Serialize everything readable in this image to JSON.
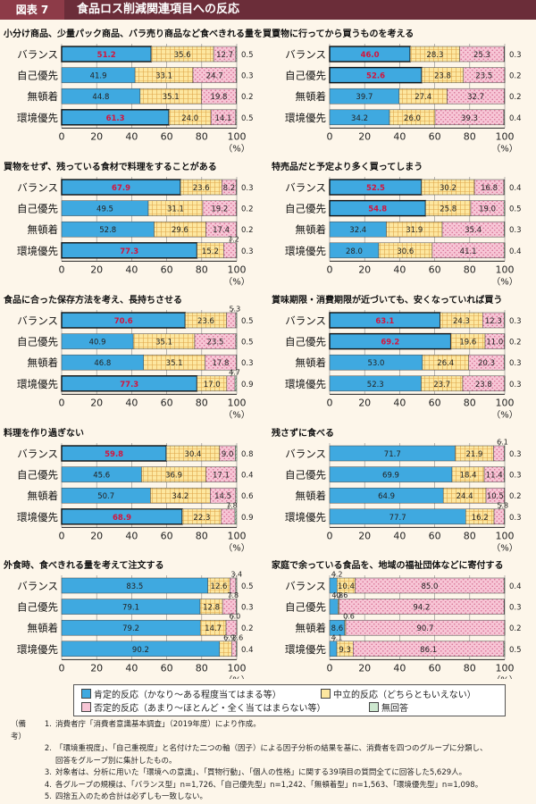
{
  "header": {
    "figure_label": "図表 7",
    "title": "食品ロス削減関連項目への反応"
  },
  "colors": {
    "positive": "#3fa9e0",
    "neutral": "#fde7a0",
    "negative": "#f7c6d6",
    "no_answer": "#cde8cf",
    "highlight": "#d5143c"
  },
  "chart_data": [
    {
      "type": "bar",
      "stacked": true,
      "orientation": "horizontal",
      "title": "小分け商品、少量パック商品、バラ売り商品など食べきれる量を買う",
      "categories": [
        "バランス",
        "自己優先",
        "無頓着",
        "環境優先"
      ],
      "highlight": [
        0,
        3
      ],
      "series": [
        {
          "values": [
            51.2,
            41.9,
            44.8,
            61.3
          ]
        },
        {
          "values": [
            35.6,
            33.1,
            35.1,
            24.0
          ]
        },
        {
          "values": [
            12.7,
            24.7,
            19.8,
            14.1
          ]
        },
        {
          "values": [
            0.5,
            0.3,
            0.2,
            0.5
          ]
        }
      ],
      "xlim": [
        0,
        100
      ],
      "ticks": [
        "0",
        "20",
        "40",
        "60",
        "80",
        "100"
      ],
      "unit": "（%）"
    },
    {
      "type": "bar",
      "stacked": true,
      "orientation": "horizontal",
      "title": "買物に行ってから買うものを考える",
      "categories": [
        "バランス",
        "自己優先",
        "無頓着",
        "環境優先"
      ],
      "highlight": [
        0,
        1
      ],
      "series": [
        {
          "values": [
            46.0,
            52.6,
            39.7,
            34.2
          ]
        },
        {
          "values": [
            28.3,
            23.8,
            27.4,
            26.0
          ]
        },
        {
          "values": [
            25.3,
            23.5,
            32.7,
            39.3
          ]
        },
        {
          "values": [
            0.3,
            0.2,
            0.2,
            0.4
          ]
        }
      ],
      "xlim": [
        0,
        100
      ],
      "ticks": [
        "0",
        "20",
        "40",
        "60",
        "80",
        "100"
      ],
      "unit": "（%）"
    },
    {
      "type": "bar",
      "stacked": true,
      "orientation": "horizontal",
      "title": "買物をせず、残っている食材で料理をすることがある",
      "categories": [
        "バランス",
        "自己優先",
        "無頓着",
        "環境優先"
      ],
      "highlight": [
        0,
        3
      ],
      "series": [
        {
          "values": [
            67.9,
            49.5,
            52.8,
            77.3
          ]
        },
        {
          "values": [
            23.6,
            31.1,
            29.6,
            15.2
          ]
        },
        {
          "values": [
            8.2,
            19.2,
            17.4,
            7.2
          ]
        },
        {
          "values": [
            0.3,
            0.2,
            0.2,
            0.3
          ]
        }
      ],
      "xlim": [
        0,
        100
      ],
      "ticks": [
        "0",
        "20",
        "40",
        "60",
        "80",
        "100"
      ],
      "unit": "（%）"
    },
    {
      "type": "bar",
      "stacked": true,
      "orientation": "horizontal",
      "title": "特売品だと予定より多く買ってしまう",
      "categories": [
        "バランス",
        "自己優先",
        "無頓着",
        "環境優先"
      ],
      "highlight": [
        0,
        1
      ],
      "series": [
        {
          "values": [
            52.5,
            54.8,
            32.4,
            28.0
          ]
        },
        {
          "values": [
            30.2,
            25.8,
            31.9,
            30.6
          ]
        },
        {
          "values": [
            16.8,
            19.0,
            35.4,
            41.1
          ]
        },
        {
          "values": [
            0.4,
            0.5,
            0.3,
            0.4
          ]
        }
      ],
      "xlim": [
        0,
        100
      ],
      "ticks": [
        "0",
        "20",
        "40",
        "60",
        "80",
        "100"
      ],
      "unit": "（%）"
    },
    {
      "type": "bar",
      "stacked": true,
      "orientation": "horizontal",
      "title": "食品に合った保存方法を考え、長持ちさせる",
      "categories": [
        "バランス",
        "自己優先",
        "無頓着",
        "環境優先"
      ],
      "highlight": [
        0,
        3
      ],
      "series": [
        {
          "values": [
            70.6,
            40.9,
            46.8,
            77.3
          ]
        },
        {
          "values": [
            23.6,
            35.1,
            35.1,
            17.0
          ]
        },
        {
          "values": [
            5.3,
            23.5,
            17.8,
            4.7
          ]
        },
        {
          "values": [
            0.5,
            0.5,
            0.3,
            0.9
          ]
        }
      ],
      "xlim": [
        0,
        100
      ],
      "ticks": [
        "0",
        "20",
        "40",
        "60",
        "80",
        "100"
      ],
      "unit": "（%）"
    },
    {
      "type": "bar",
      "stacked": true,
      "orientation": "horizontal",
      "title": "賞味期限・消費期限が近づいても、安くなっていれば買う",
      "categories": [
        "バランス",
        "自己優先",
        "無頓着",
        "環境優先"
      ],
      "highlight": [
        0,
        1
      ],
      "series": [
        {
          "values": [
            63.1,
            69.2,
            53.0,
            52.3
          ]
        },
        {
          "values": [
            24.3,
            19.6,
            26.4,
            23.7
          ]
        },
        {
          "values": [
            12.3,
            11.0,
            20.3,
            23.8
          ]
        },
        {
          "values": [
            0.3,
            0.2,
            0.3,
            0.3
          ]
        }
      ],
      "xlim": [
        0,
        100
      ],
      "ticks": [
        "0",
        "20",
        "40",
        "60",
        "80",
        "100"
      ],
      "unit": "（%）"
    },
    {
      "type": "bar",
      "stacked": true,
      "orientation": "horizontal",
      "title": "料理を作り過ぎない",
      "categories": [
        "バランス",
        "自己優先",
        "無頓着",
        "環境優先"
      ],
      "highlight": [
        0,
        3
      ],
      "series": [
        {
          "values": [
            59.8,
            45.6,
            50.7,
            68.9
          ]
        },
        {
          "values": [
            30.4,
            36.9,
            34.2,
            22.3
          ]
        },
        {
          "values": [
            9.0,
            17.1,
            14.5,
            7.8
          ]
        },
        {
          "values": [
            0.8,
            0.4,
            0.6,
            0.9
          ]
        }
      ],
      "xlim": [
        0,
        100
      ],
      "ticks": [
        "0",
        "20",
        "40",
        "60",
        "80",
        "100"
      ],
      "unit": "（%）"
    },
    {
      "type": "bar",
      "stacked": true,
      "orientation": "horizontal",
      "title": "残さずに食べる",
      "categories": [
        "バランス",
        "自己優先",
        "無頓着",
        "環境優先"
      ],
      "highlight": [],
      "series": [
        {
          "values": [
            71.7,
            69.9,
            64.9,
            77.7
          ]
        },
        {
          "values": [
            21.9,
            18.4,
            24.4,
            16.2
          ]
        },
        {
          "values": [
            6.1,
            11.4,
            10.5,
            5.8
          ]
        },
        {
          "values": [
            0.3,
            0.3,
            0.2,
            0.3
          ]
        }
      ],
      "xlim": [
        0,
        100
      ],
      "ticks": [
        "0",
        "20",
        "40",
        "60",
        "80",
        "100"
      ],
      "unit": "（%）"
    },
    {
      "type": "bar",
      "stacked": true,
      "orientation": "horizontal",
      "title": "外食時、食べきれる量を考えて注文する",
      "categories": [
        "バランス",
        "自己優先",
        "無頓着",
        "環境優先"
      ],
      "highlight": [],
      "series": [
        {
          "values": [
            83.5,
            79.1,
            79.2,
            90.2
          ]
        },
        {
          "values": [
            12.6,
            12.8,
            14.7,
            6.9
          ]
        },
        {
          "values": [
            3.4,
            7.8,
            6.0,
            2.6
          ]
        },
        {
          "values": [
            0.5,
            0.3,
            0.2,
            0.4
          ]
        }
      ],
      "xlim": [
        0,
        100
      ],
      "ticks": [
        "0",
        "20",
        "40",
        "60",
        "80",
        "100"
      ],
      "unit": "（%）"
    },
    {
      "type": "bar",
      "stacked": true,
      "orientation": "horizontal",
      "title": "家庭で余っている食品を、地域の福祉団体などに寄付する",
      "categories": [
        "バランス",
        "自己優先",
        "無頓着",
        "環境優先"
      ],
      "highlight": [],
      "series": [
        {
          "values": [
            4.2,
            4.8,
            8.6,
            4.1
          ]
        },
        {
          "values": [
            10.4,
            0.6,
            0.6,
            9.3
          ]
        },
        {
          "values": [
            85.0,
            94.2,
            90.7,
            86.1
          ]
        },
        {
          "values": [
            0.4,
            0.3,
            0.2,
            0.5
          ]
        }
      ],
      "xlim": [
        0,
        100
      ],
      "ticks": [
        "0",
        "20",
        "40",
        "60",
        "80",
        "100"
      ],
      "unit": "（%）"
    }
  ],
  "legend": {
    "positive": "肯定的反応（かなり～ある程度当てはまる等）",
    "neutral": "中立的反応（どちらともいえない）",
    "negative": "否定的反応（あまり～ほとんど・全く当てはまらない等）",
    "no_answer": "無回答"
  },
  "notes": {
    "label": "（備考）",
    "items": [
      "消費者庁「消費者意識基本調査」（2019年度）により作成。",
      "「環境重視度」、「自己重視度」と名付けた二つの軸（因子）による因子分析の結果を基に、消費者を四つのグループに分類し、",
      "回答をグループ別に集計したもの。",
      "対象者は、分析に用いた「環境への意識」、「買物行動」、「個人の性格」に関する39項目の質問全てに回答した5,629人。",
      "各グループの規模は、「バランス型」n=1,726、「自己優先型」n=1,242、「無頓着型」n=1,563、「環境優先型」n=1,098。",
      "四捨五入のため合計は必ずしも一致しない。"
    ],
    "numbers": [
      "1.",
      "2.",
      "",
      "3.",
      "4.",
      "5."
    ]
  }
}
